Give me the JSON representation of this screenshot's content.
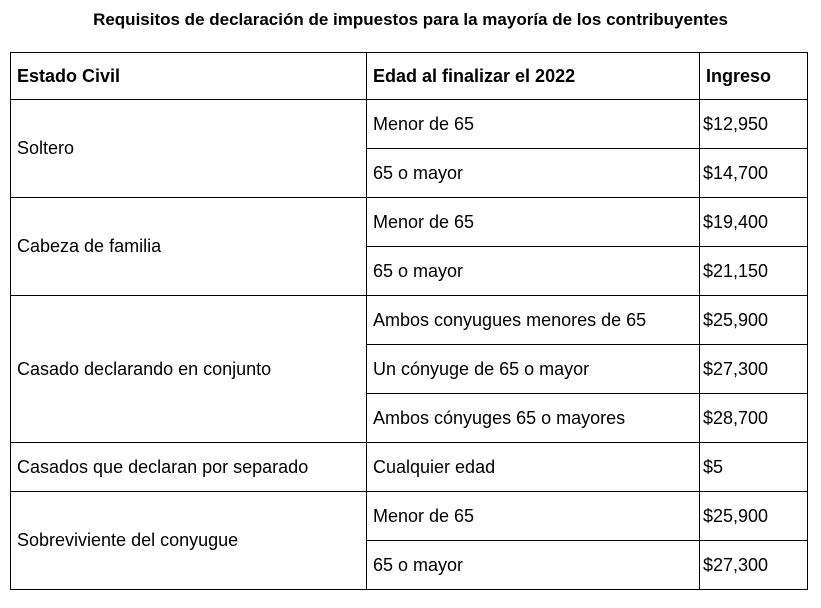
{
  "title": "Requisitos de declaración de impuestos para la mayoría de los contribuyentes",
  "table": {
    "header": [
      "Estado Civil",
      "Edad al finalizar el 2022",
      "Ingreso"
    ],
    "groups": [
      {
        "status": "Soltero",
        "rows": [
          [
            "Menor de 65",
            "$12,950"
          ],
          [
            "65 o mayor",
            "$14,700"
          ]
        ]
      },
      {
        "status": "Cabeza de familia",
        "rows": [
          [
            "Menor de 65",
            "$19,400"
          ],
          [
            "65 o mayor",
            "$21,150"
          ]
        ]
      },
      {
        "status": "Casado declarando en conjunto",
        "rows": [
          [
            "Ambos conyugues menores de 65",
            "$25,900"
          ],
          [
            "Un cónyuge de 65 o mayor",
            "$27,300"
          ],
          [
            "Ambos cónyuges 65 o mayores",
            "$28,700"
          ]
        ]
      },
      {
        "status": "Casados que declaran por separado",
        "rows": [
          [
            "Cualquier edad",
            "$5"
          ]
        ]
      },
      {
        "status": "Sobreviviente del conyugue",
        "rows": [
          [
            "Menor de 65",
            "$25,900"
          ],
          [
            "65 o mayor",
            "$27,300"
          ]
        ]
      }
    ]
  }
}
